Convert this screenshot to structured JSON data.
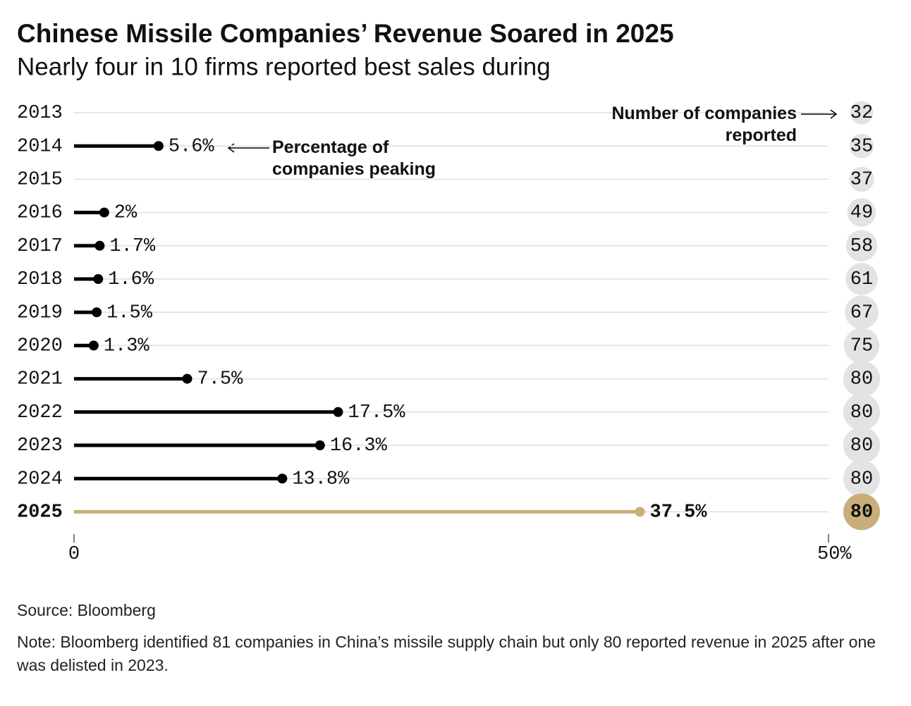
{
  "chart_data": {
    "type": "lollipop",
    "title": "Chinese Missile Companies’ Revenue Soared in 2025",
    "subtitle": "Nearly four in 10 firms reported best sales during",
    "categories": [
      "2013",
      "2014",
      "2015",
      "2016",
      "2017",
      "2018",
      "2019",
      "2020",
      "2021",
      "2022",
      "2023",
      "2024",
      "2025"
    ],
    "series": [
      {
        "name": "Percentage of companies peaking",
        "color": "#000000",
        "values": [
          null,
          5.6,
          null,
          2,
          1.7,
          1.6,
          1.5,
          1.3,
          7.5,
          17.5,
          16.3,
          13.8,
          37.5
        ],
        "value_labels": [
          null,
          "5.6%",
          null,
          "2%",
          "1.7%",
          "1.6%",
          "1.5%",
          "1.3%",
          "7.5%",
          "17.5%",
          "16.3%",
          "13.8%",
          "37.5%"
        ],
        "colors": [
          "#000000",
          "#000000",
          "#000000",
          "#000000",
          "#000000",
          "#000000",
          "#000000",
          "#000000",
          "#000000",
          "#000000",
          "#000000",
          "#000000",
          "#c9ae7c"
        ]
      },
      {
        "name": "Number of companies reported",
        "color": "#e3e3e3",
        "values": [
          32,
          35,
          37,
          49,
          58,
          61,
          67,
          75,
          80,
          80,
          80,
          80,
          80
        ],
        "colors": [
          "#e3e3e3",
          "#e3e3e3",
          "#e3e3e3",
          "#e3e3e3",
          "#e3e3e3",
          "#e3e3e3",
          "#e3e3e3",
          "#e3e3e3",
          "#e3e3e3",
          "#e3e3e3",
          "#e3e3e3",
          "#e3e3e3",
          "#c9ae7c"
        ]
      }
    ],
    "xlim": [
      0,
      50
    ],
    "xticks": [
      0,
      {
        "value": 50,
        "label": "50%"
      }
    ],
    "grid": true,
    "source": "Source: Bloomberg",
    "note": "Note: Bloomberg identified 81 companies in China’s missile supply chain but only 80 reported revenue in 2025 after one was delisted in 2023."
  }
}
